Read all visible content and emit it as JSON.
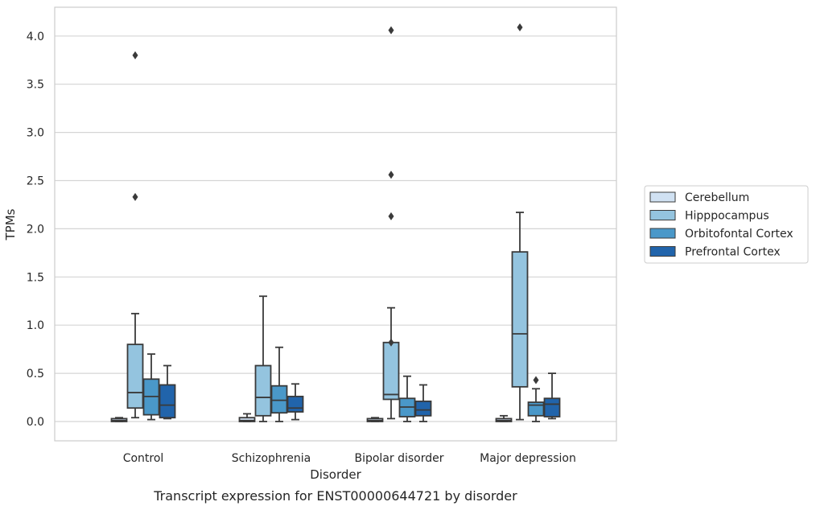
{
  "chart_data": {
    "type": "boxplot",
    "caption": "Transcript expression for ENST00000644721 by disorder",
    "xlabel": "Disorder",
    "ylabel": "TPMs",
    "ylim": [
      -0.2,
      4.3
    ],
    "yticks": [
      0.0,
      0.5,
      1.0,
      1.5,
      2.0,
      2.5,
      3.0,
      3.5,
      4.0
    ],
    "ytick_labels": [
      "0.0",
      "0.5",
      "1.0",
      "1.5",
      "2.0",
      "2.5",
      "3.0",
      "3.5",
      "4.0"
    ],
    "grid": "horizontal",
    "legend_placement": "right, outside plot",
    "categories": [
      "Control",
      "Schizophrenia",
      "Bipolar disorder",
      "Major depression"
    ],
    "series": [
      {
        "name": "Cerebellum",
        "color": "#d0e1f2",
        "boxes": [
          {
            "whisker_low": 0.0,
            "q1": 0.0,
            "median": 0.01,
            "q3": 0.03,
            "whisker_high": 0.04,
            "outliers": []
          },
          {
            "whisker_low": 0.0,
            "q1": 0.0,
            "median": 0.01,
            "q3": 0.04,
            "whisker_high": 0.08,
            "outliers": []
          },
          {
            "whisker_low": 0.0,
            "q1": 0.0,
            "median": 0.01,
            "q3": 0.03,
            "whisker_high": 0.04,
            "outliers": []
          },
          {
            "whisker_low": 0.0,
            "q1": 0.0,
            "median": 0.01,
            "q3": 0.03,
            "whisker_high": 0.06,
            "outliers": []
          }
        ]
      },
      {
        "name": "Hipppocampus",
        "color": "#94c4df",
        "boxes": [
          {
            "whisker_low": 0.04,
            "q1": 0.14,
            "median": 0.3,
            "q3": 0.8,
            "whisker_high": 1.12,
            "outliers": [
              2.33,
              3.8
            ]
          },
          {
            "whisker_low": 0.0,
            "q1": 0.06,
            "median": 0.25,
            "q3": 0.58,
            "whisker_high": 1.3,
            "outliers": []
          },
          {
            "whisker_low": 0.03,
            "q1": 0.23,
            "median": 0.28,
            "q3": 0.82,
            "whisker_high": 1.18,
            "outliers": [
              2.13,
              2.56,
              4.06,
              0.82
            ]
          },
          {
            "whisker_low": 0.02,
            "q1": 0.36,
            "median": 0.91,
            "q3": 1.76,
            "whisker_high": 2.17,
            "outliers": [
              4.09
            ]
          }
        ]
      },
      {
        "name": "Orbitofontal Cortex",
        "color": "#4a98c9",
        "boxes": [
          {
            "whisker_low": 0.02,
            "q1": 0.07,
            "median": 0.26,
            "q3": 0.44,
            "whisker_high": 0.7,
            "outliers": []
          },
          {
            "whisker_low": 0.0,
            "q1": 0.09,
            "median": 0.22,
            "q3": 0.37,
            "whisker_high": 0.77,
            "outliers": []
          },
          {
            "whisker_low": 0.0,
            "q1": 0.05,
            "median": 0.15,
            "q3": 0.24,
            "whisker_high": 0.47,
            "outliers": []
          },
          {
            "whisker_low": 0.0,
            "q1": 0.06,
            "median": 0.17,
            "q3": 0.2,
            "whisker_high": 0.34,
            "outliers": [
              0.43
            ]
          }
        ]
      },
      {
        "name": "Prefrontal Cortex",
        "color": "#2164ab",
        "boxes": [
          {
            "whisker_low": 0.03,
            "q1": 0.04,
            "median": 0.17,
            "q3": 0.38,
            "whisker_high": 0.58,
            "outliers": []
          },
          {
            "whisker_low": 0.02,
            "q1": 0.1,
            "median": 0.14,
            "q3": 0.26,
            "whisker_high": 0.39,
            "outliers": []
          },
          {
            "whisker_low": 0.0,
            "q1": 0.06,
            "median": 0.12,
            "q3": 0.21,
            "whisker_high": 0.38,
            "outliers": []
          },
          {
            "whisker_low": 0.03,
            "q1": 0.05,
            "median": 0.18,
            "q3": 0.24,
            "whisker_high": 0.5,
            "outliers": []
          }
        ]
      }
    ]
  },
  "colors": {
    "grid": "#d5d5d5",
    "frame": "#cccccc",
    "box_edge": "#3a3a3a",
    "text": "#262626"
  }
}
